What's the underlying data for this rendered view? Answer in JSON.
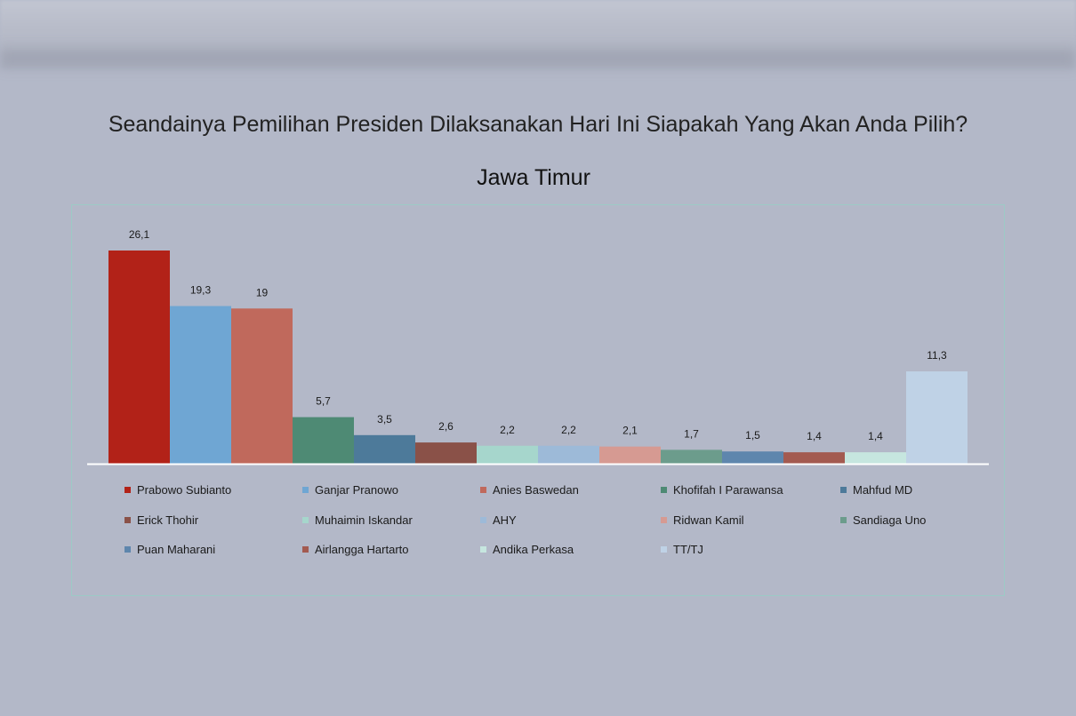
{
  "chart_data": {
    "type": "bar",
    "title": "Seandainya Pemilihan Presiden Dilaksanakan Hari Ini Siapakah Yang Akan Anda Pilih?",
    "subtitle": "Jawa Timur",
    "xlabel": "",
    "ylabel": "",
    "ylim": [
      0,
      27
    ],
    "grid": false,
    "legend_position": "bottom",
    "series": [
      {
        "name": "Prabowo Subianto",
        "value": 26.1,
        "label": "26,1",
        "color": "#b22218"
      },
      {
        "name": "Ganjar Pranowo",
        "value": 19.3,
        "label": "19,3",
        "color": "#6fa6d3"
      },
      {
        "name": "Anies Baswedan",
        "value": 19,
        "label": "19",
        "color": "#c0695c"
      },
      {
        "name": "Khofifah I Parawansa",
        "value": 5.7,
        "label": "5,7",
        "color": "#4e8a74"
      },
      {
        "name": "Mahfud MD",
        "value": 3.5,
        "label": "3,5",
        "color": "#4d7a9a"
      },
      {
        "name": "Erick Thohir",
        "value": 2.6,
        "label": "2,6",
        "color": "#8a5148"
      },
      {
        "name": "Muhaimin Iskandar",
        "value": 2.2,
        "label": "2,2",
        "color": "#a6d6cc"
      },
      {
        "name": "AHY",
        "value": 2.2,
        "label": "2,2",
        "color": "#9dbad8"
      },
      {
        "name": "Ridwan Kamil",
        "value": 2.1,
        "label": "2,1",
        "color": "#d69a92"
      },
      {
        "name": "Sandiaga Uno",
        "value": 1.7,
        "label": "1,7",
        "color": "#6c9c8c"
      },
      {
        "name": "Puan Maharani",
        "value": 1.5,
        "label": "1,5",
        "color": "#5e86ad"
      },
      {
        "name": "Airlangga Hartarto",
        "value": 1.4,
        "label": "1,4",
        "color": "#a35a50"
      },
      {
        "name": "Andika Perkasa",
        "value": 1.4,
        "label": "1,4",
        "color": "#c6e6df"
      },
      {
        "name": "TT/TJ",
        "value": 11.3,
        "label": "11,3",
        "color": "#bfd2e6"
      }
    ]
  }
}
